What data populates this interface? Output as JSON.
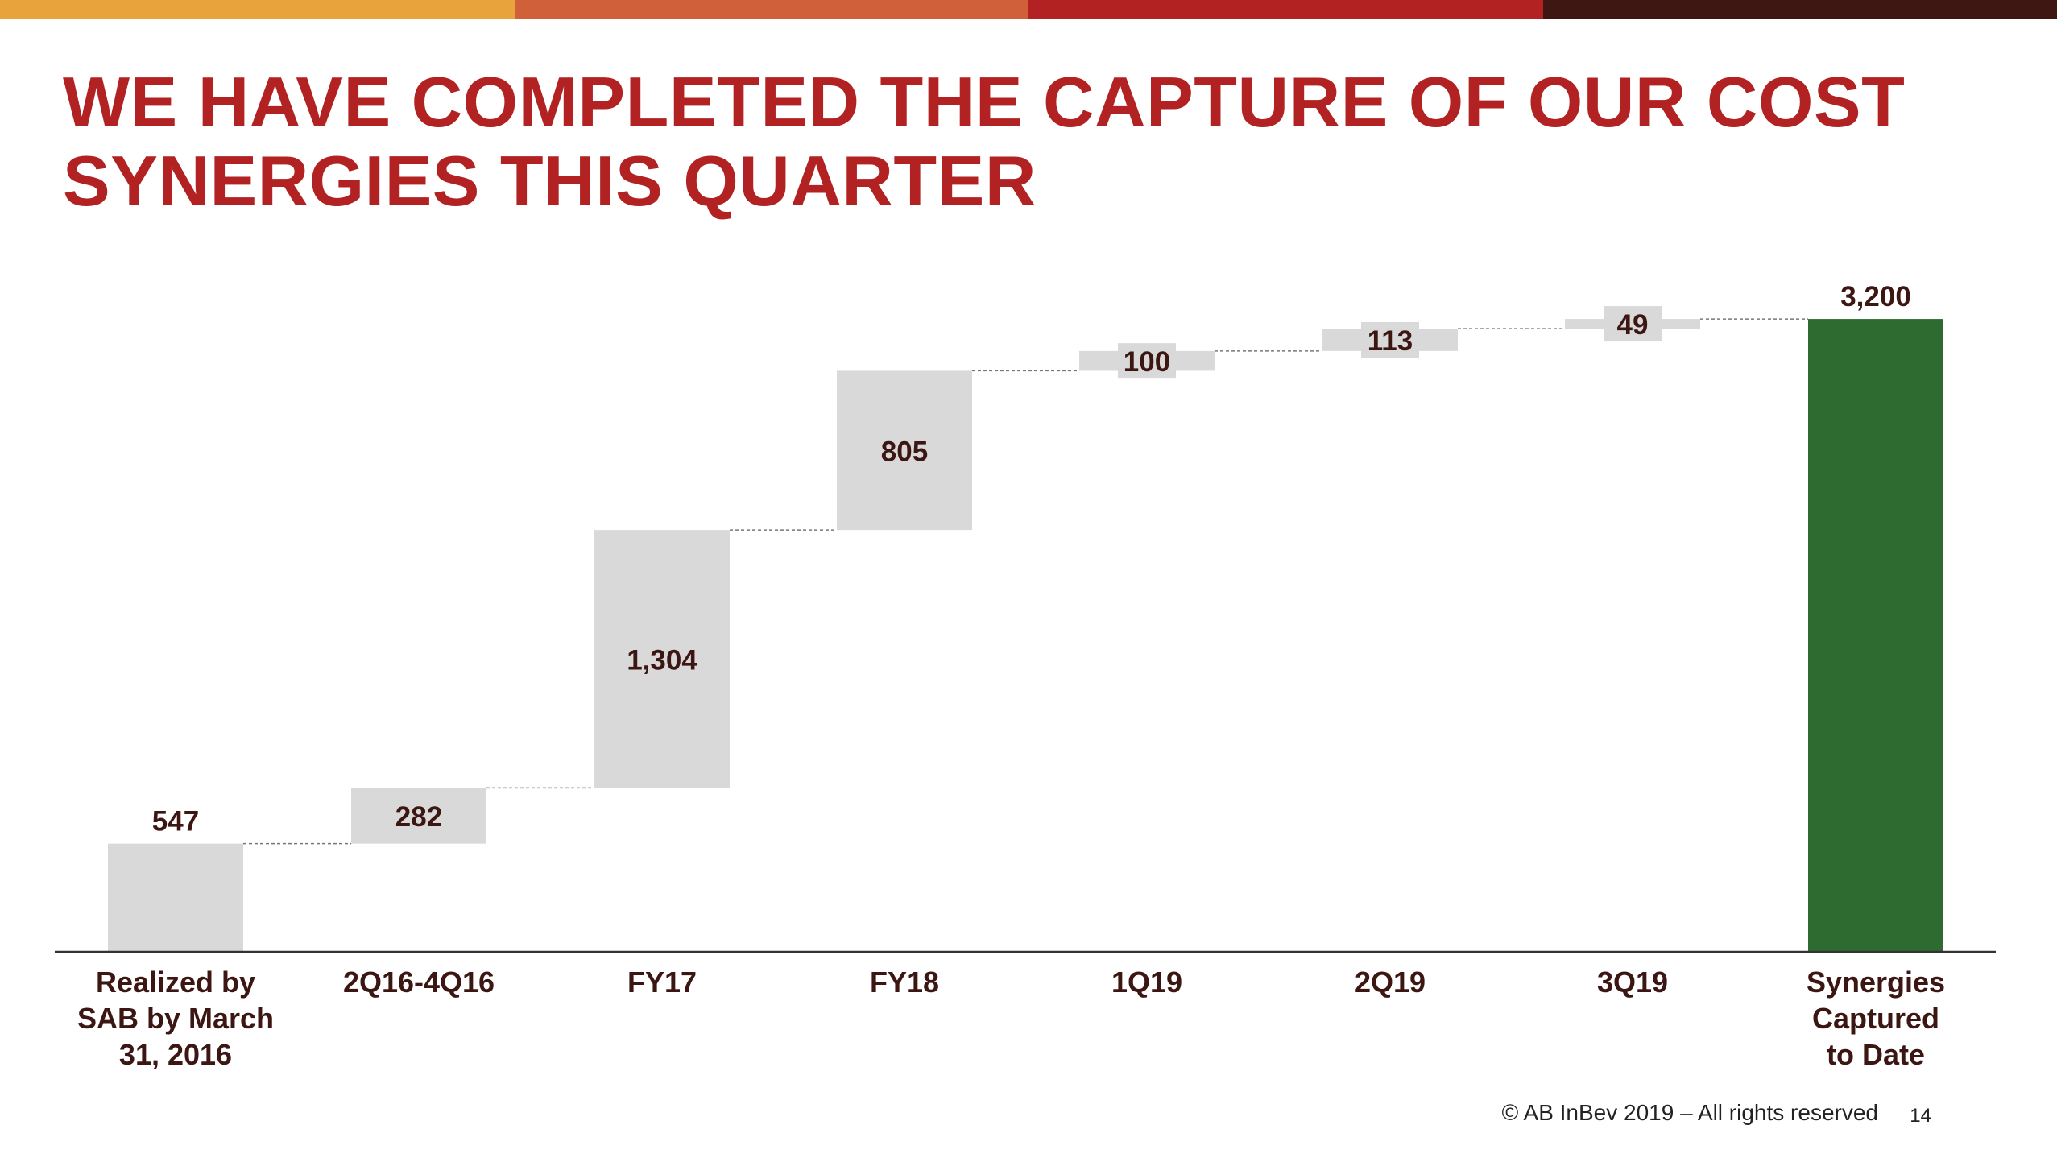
{
  "colors": {
    "top_bar": [
      "#e8a33d",
      "#d0603a",
      "#b22222",
      "#3e1612"
    ],
    "title": "#b22222",
    "bar": "#d9d9d9",
    "total_bar": "#2e6b30",
    "value_label": "#3b1612",
    "axis": "#333333",
    "connector": "#777777"
  },
  "slide": {
    "title_line1": "WE HAVE COMPLETED THE CAPTURE OF OUR COST",
    "title_line2": "SYNERGIES THIS QUARTER",
    "copyright": "© AB InBev 2019 – All rights reserved",
    "page_number": "14"
  },
  "chart_data": {
    "type": "waterfall",
    "title": "",
    "xlabel": "",
    "ylabel": "",
    "ylim": [
      0,
      3500
    ],
    "grid": false,
    "legend": false,
    "categories": [
      [
        "Realized by",
        "SAB by March",
        "31, 2016"
      ],
      [
        "2Q16-4Q16"
      ],
      [
        "FY17"
      ],
      [
        "FY18"
      ],
      [
        "1Q19"
      ],
      [
        "2Q19"
      ],
      [
        "3Q19"
      ],
      [
        "Synergies",
        "Captured",
        "to Date"
      ]
    ],
    "values": [
      547,
      282,
      1304,
      805,
      100,
      113,
      49,
      3200
    ],
    "value_labels": [
      "547",
      "282",
      "1,304",
      "805",
      "100",
      "113",
      "49",
      "3,200"
    ],
    "bar_kind": [
      "start",
      "delta",
      "delta",
      "delta",
      "delta",
      "delta",
      "delta",
      "total"
    ]
  }
}
